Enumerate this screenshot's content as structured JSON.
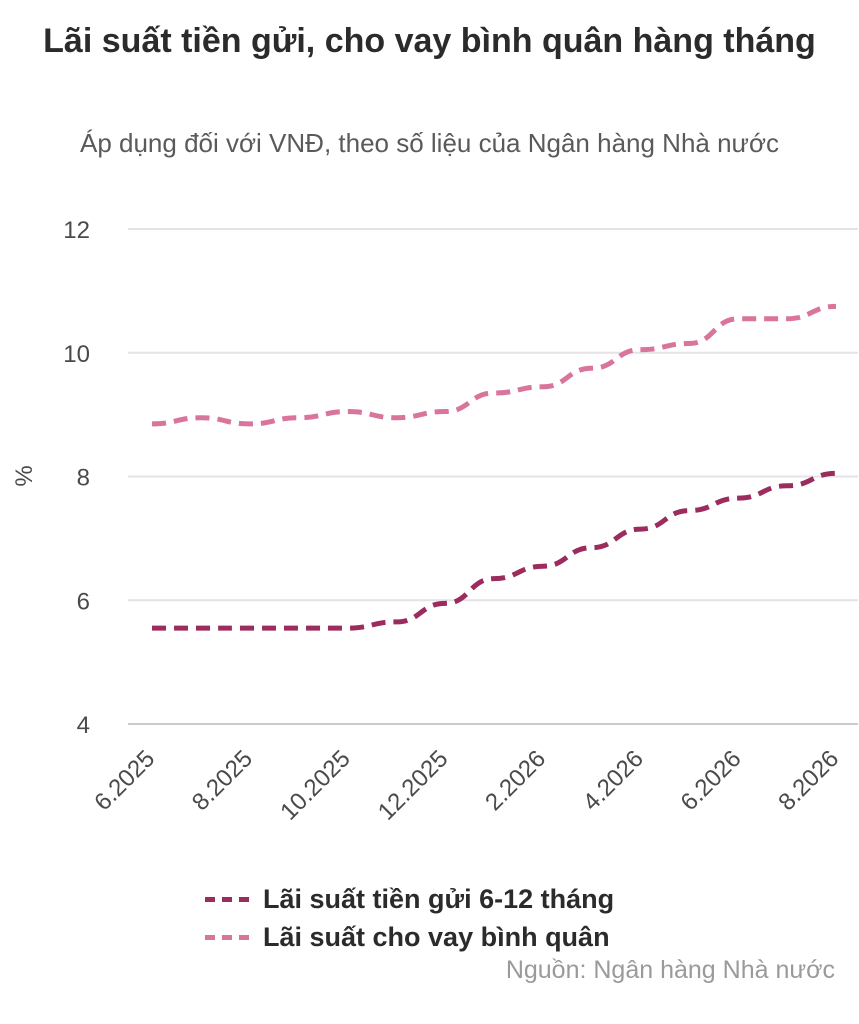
{
  "chart_data": {
    "type": "line",
    "title": "Lãi suất tiền gửi, cho vay bình quân hàng tháng",
    "subtitle": "Áp dụng đối với VNĐ, theo số liệu của Ngân hàng Nhà nước",
    "xlabel": "",
    "ylabel": "%",
    "ylim": [
      4,
      12
    ],
    "yticks": [
      "4",
      "6",
      "8",
      "10",
      "12"
    ],
    "x_tick_labels": [
      "6.2025",
      "8.2025",
      "10.2025",
      "12.2025",
      "2.2026",
      "4.2026",
      "6.2026",
      "8.2026"
    ],
    "x": [
      "6.2025",
      "7.2025",
      "8.2025",
      "9.2025",
      "10.2025",
      "11.2025",
      "12.2025",
      "1.2026",
      "2.2026",
      "3.2026",
      "4.2026",
      "5.2026",
      "6.2026",
      "7.2026",
      "8.2026"
    ],
    "grid": true,
    "legend_position": "bottom",
    "series": [
      {
        "name": "Lãi suất tiền gửi 6-12 tháng",
        "color": "#9b2c5d",
        "values": [
          5.55,
          5.55,
          5.55,
          5.55,
          5.55,
          5.65,
          5.95,
          6.35,
          6.55,
          6.85,
          7.15,
          7.45,
          7.65,
          7.85,
          8.05
        ]
      },
      {
        "name": "Lãi suất cho vay bình quân",
        "color": "#d9749c",
        "values": [
          8.85,
          8.95,
          8.85,
          8.95,
          9.05,
          8.95,
          9.05,
          9.35,
          9.45,
          9.75,
          10.05,
          10.15,
          10.55,
          10.55,
          10.75
        ]
      }
    ],
    "source": "Nguồn: Ngân hàng Nhà nước"
  }
}
